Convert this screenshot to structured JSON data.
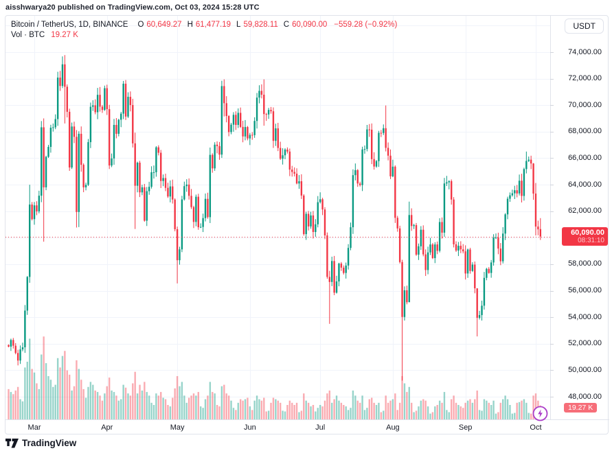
{
  "attribution": "aisshwarya20 published on TradingView.com, Oct 03, 2024 15:28 UTC",
  "legend": {
    "symbol_title": "Bitcoin / TetherUS, 1D, BINANCE",
    "o_label": "O",
    "o_value": "60,649.27",
    "h_label": "H",
    "h_value": "61,477.19",
    "l_label": "L",
    "l_value": "59,828.11",
    "c_label": "C",
    "c_value": "60,090.00",
    "change": "−559.28 (−0.92%)",
    "vol_label": "Vol · BTC",
    "vol_value": "19.27 K"
  },
  "axis": {
    "currency_button": "USDT",
    "price_badge": {
      "price": "60,090.00",
      "countdown": "08:31:10"
    },
    "volume_badge": "19.27 K"
  },
  "footer": {
    "brand": "TradingView"
  },
  "colors": {
    "up": "#089981",
    "down": "#f23645",
    "accent_red": "#f23645",
    "grid": "#f0f3fa",
    "border": "#e0e3eb",
    "text": "#131722",
    "purple": "#ab3dc9"
  },
  "chart_data": {
    "type": "candlestick",
    "title": "Bitcoin / TetherUS",
    "exchange": "BINANCE",
    "interval": "1D",
    "quote_currency": "USDT",
    "start_date": "2024-02-19",
    "end_date": "2024-10-03",
    "grid": true,
    "ylim": [
      46000,
      76000
    ],
    "y_ticks": [
      {
        "label": "74,000.00",
        "value": 74000
      },
      {
        "label": "72,000.00",
        "value": 72000
      },
      {
        "label": "70,000.00",
        "value": 70000
      },
      {
        "label": "68,000.00",
        "value": 68000
      },
      {
        "label": "66,000.00",
        "value": 66000
      },
      {
        "label": "64,000.00",
        "value": 64000
      },
      {
        "label": "62,000.00",
        "value": 62000
      },
      {
        "label": "58,000.00",
        "value": 58000
      },
      {
        "label": "56,000.00",
        "value": 56000
      },
      {
        "label": "54,000.00",
        "value": 54000
      },
      {
        "label": "52,000.00",
        "value": 52000
      },
      {
        "label": "50,000.00",
        "value": 50000
      },
      {
        "label": "48,000.00",
        "value": 48000
      }
    ],
    "x_ticks": [
      {
        "label": "Mar",
        "day_index": 11
      },
      {
        "label": "Apr",
        "day_index": 42
      },
      {
        "label": "May",
        "day_index": 72
      },
      {
        "label": "Jun",
        "day_index": 103
      },
      {
        "label": "Jul",
        "day_index": 133
      },
      {
        "label": "Aug",
        "day_index": 164
      },
      {
        "label": "Sep",
        "day_index": 195
      },
      {
        "label": "Oct",
        "day_index": 225
      }
    ],
    "current_price": 60090.0,
    "price_line": {
      "value": 60090.0,
      "style": "dotted",
      "color": "#f23645"
    },
    "last_bar": {
      "open": 60649.27,
      "high": 61477.19,
      "low": 59828.11,
      "close": 60090.0,
      "change": -559.28,
      "change_pct": -0.92,
      "volume_btc_k": 19.27
    },
    "first_open": 51900,
    "closes": [
      51780,
      52280,
      51850,
      51300,
      50730,
      51570,
      51730,
      54500,
      57040,
      62500,
      61400,
      62440,
      61990,
      63170,
      68330,
      63800,
      66100,
      66850,
      68300,
      68330,
      68950,
      72080,
      71450,
      73080,
      71390,
      69500,
      65300,
      68390,
      67610,
      61940,
      67840,
      65500,
      63800,
      63990,
      67210,
      69880,
      69990,
      69470,
      70780,
      69890,
      69640,
      71280,
      69700,
      65450,
      65980,
      68510,
      67840,
      68900,
      69360,
      71620,
      69140,
      70630,
      70010,
      67120,
      63920,
      65660,
      63420,
      63800,
      61280,
      63510,
      63840,
      64940,
      64940,
      66820,
      66410,
      64280,
      64500,
      63760,
      63110,
      63870,
      62880,
      60640,
      58300,
      59120,
      62890,
      63890,
      64010,
      63160,
      62310,
      61190,
      63090,
      60790,
      60810,
      61480,
      62930,
      61550,
      66250,
      65230,
      67020,
      66910,
      66270,
      71440,
      70150,
      69180,
      67970,
      68530,
      69270,
      68510,
      69420,
      68360,
      67640,
      68350,
      67490,
      67760,
      67740,
      68810,
      70570,
      71080,
      70790,
      69330,
      69300,
      69640,
      69540,
      67310,
      68250,
      66770,
      65960,
      66220,
      66650,
      66500,
      65140,
      64960,
      64830,
      64090,
      64260,
      63180,
      60270,
      61800,
      60850,
      61680,
      60430,
      61010,
      62680,
      62900,
      62130,
      60170,
      57040,
      56660,
      58240,
      55850,
      56700,
      58050,
      57740,
      57340,
      57900,
      59230,
      60790,
      64720,
      65100,
      64090,
      63970,
      66660,
      66690,
      68170,
      68150,
      65930,
      65370,
      65780,
      67910,
      67900,
      68260,
      66780,
      66190,
      64630,
      65360,
      61500,
      60700,
      58160,
      54020,
      56030,
      55130,
      61710,
      60880,
      60950,
      58720,
      59350,
      60600,
      58740,
      57560,
      58890,
      59490,
      58460,
      59490,
      59010,
      61180,
      60380,
      64090,
      64180,
      64270,
      62880,
      59500,
      59030,
      59390,
      59120,
      58970,
      57300,
      59110,
      57490,
      57970,
      56180,
      53950,
      54160,
      54870,
      56970,
      57650,
      57340,
      58130,
      60010,
      60010,
      59180,
      58220,
      60310,
      61760,
      62940,
      63200,
      63350,
      63580,
      63340,
      64300,
      63150,
      65180,
      65790,
      65890,
      65600,
      63330,
      60840,
      60630,
      60090
    ],
    "volumes_k_btc": [
      42,
      38,
      35,
      40,
      45,
      28,
      25,
      72,
      80,
      112,
      70,
      65,
      50,
      42,
      90,
      115,
      78,
      60,
      55,
      45,
      48,
      85,
      72,
      88,
      95,
      68,
      62,
      40,
      46,
      82,
      70,
      55,
      42,
      30,
      45,
      52,
      48,
      40,
      38,
      33,
      26,
      36,
      46,
      58,
      40,
      38,
      33,
      26,
      28,
      48,
      44,
      36,
      33,
      50,
      66,
      36,
      48,
      40,
      52,
      38,
      33,
      23,
      20,
      36,
      33,
      38,
      30,
      28,
      20,
      18,
      30,
      43,
      60,
      46,
      52,
      33,
      23,
      30,
      33,
      36,
      33,
      38,
      18,
      16,
      28,
      33,
      52,
      38,
      36,
      20,
      18,
      46,
      48,
      36,
      33,
      26,
      16,
      13,
      23,
      28,
      26,
      28,
      30,
      18,
      13,
      26,
      33,
      28,
      26,
      30,
      11,
      12,
      23,
      30,
      28,
      26,
      23,
      12,
      11,
      20,
      26,
      23,
      20,
      23,
      10,
      12,
      36,
      26,
      23,
      18,
      20,
      11,
      16,
      20,
      18,
      26,
      36,
      40,
      23,
      28,
      33,
      26,
      23,
      20,
      18,
      13,
      16,
      40,
      33,
      26,
      23,
      33,
      13,
      16,
      28,
      30,
      23,
      20,
      23,
      10,
      12,
      33,
      23,
      26,
      28,
      36,
      13,
      23,
      60,
      50,
      38,
      45,
      23,
      10,
      12,
      18,
      26,
      28,
      26,
      18,
      8,
      10,
      18,
      20,
      26,
      23,
      38,
      13,
      10,
      28,
      33,
      23,
      20,
      18,
      16,
      23,
      26,
      28,
      23,
      28,
      40,
      13,
      12,
      28,
      26,
      23,
      20,
      26,
      8,
      10,
      23,
      28,
      33,
      28,
      20,
      8,
      9,
      23,
      24,
      26,
      28,
      23,
      9,
      8,
      33,
      36,
      26,
      19.27
    ],
    "open_overrides": {
      "0": 51900,
      "227": 60649.27
    },
    "wick_overrides": {
      "9": [
        64000,
        56600
      ],
      "15": [
        69000,
        59700
      ],
      "23": [
        73680,
        71290
      ],
      "24": [
        73780,
        68620
      ],
      "29": [
        68120,
        60770
      ],
      "30": [
        68030,
        60800
      ],
      "54": [
        67930,
        60660
      ],
      "72": [
        60840,
        56550
      ],
      "92": [
        71950,
        69150
      ],
      "109": [
        71950,
        68450
      ],
      "137": [
        57500,
        53500
      ],
      "161": [
        69980,
        66510
      ],
      "168": [
        58330,
        49220
      ],
      "171": [
        62720,
        55560
      ],
      "200": [
        56100,
        52550
      ],
      "221": [
        66500,
        64850
      ],
      "224": [
        65630,
        62860
      ],
      "225": [
        64130,
        60170
      ],
      "227": [
        61477.19,
        59828.11
      ]
    }
  }
}
